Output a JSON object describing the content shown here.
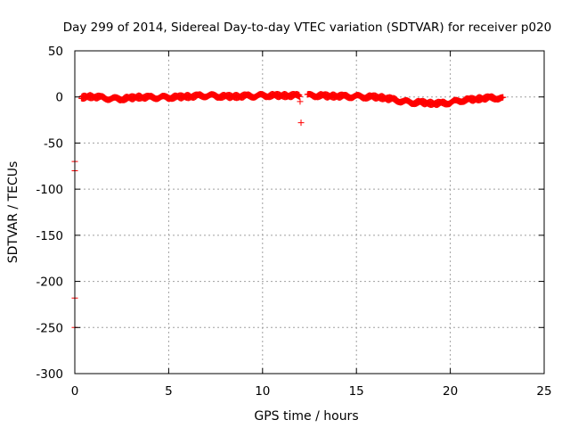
{
  "chart_data": {
    "type": "scatter",
    "title": "Day 299 of 2014, Sidereal Day-to-day VTEC variation (SDTVAR) for receiver p020",
    "xlabel": "GPS time / hours",
    "ylabel": "SDTVAR / TECUs",
    "xlim": [
      0,
      25
    ],
    "ylim": [
      -300,
      50
    ],
    "xticks": [
      0,
      5,
      10,
      15,
      20,
      25
    ],
    "yticks": [
      50,
      0,
      -50,
      -100,
      -150,
      -200,
      -250,
      -300
    ],
    "grid": true,
    "marker": "+",
    "series": [
      {
        "name": "SDTVAR",
        "color": "#ff0000",
        "trend": [
          [
            0.35,
            -1
          ],
          [
            0.5,
            0
          ],
          [
            1.0,
            0.5
          ],
          [
            1.5,
            -1
          ],
          [
            2.0,
            -2
          ],
          [
            2.5,
            -2
          ],
          [
            3.0,
            -1
          ],
          [
            3.5,
            0
          ],
          [
            4.0,
            -0.5
          ],
          [
            4.5,
            -0.5
          ],
          [
            5.0,
            -0.5
          ],
          [
            5.5,
            0
          ],
          [
            6.0,
            0.5
          ],
          [
            6.5,
            1
          ],
          [
            7.0,
            1.5
          ],
          [
            7.5,
            1
          ],
          [
            8.0,
            0.5
          ],
          [
            8.5,
            0.5
          ],
          [
            9.0,
            1
          ],
          [
            9.5,
            1
          ],
          [
            10.0,
            1.5
          ],
          [
            10.5,
            1.5
          ],
          [
            11.0,
            1.5
          ],
          [
            11.5,
            1.5
          ],
          [
            12.0,
            1.5
          ],
          [
            12.3,
            1.5
          ],
          [
            13.0,
            1.5
          ],
          [
            13.5,
            1
          ],
          [
            14.0,
            1
          ],
          [
            14.5,
            0.5
          ],
          [
            15.0,
            0.5
          ],
          [
            15.5,
            0
          ],
          [
            16.0,
            0
          ],
          [
            16.5,
            -1
          ],
          [
            17.0,
            -3
          ],
          [
            17.5,
            -5
          ],
          [
            18.0,
            -6
          ],
          [
            18.5,
            -6
          ],
          [
            19.0,
            -7
          ],
          [
            19.5,
            -7
          ],
          [
            20.0,
            -6
          ],
          [
            20.5,
            -4
          ],
          [
            21.0,
            -3
          ],
          [
            21.5,
            -2
          ],
          [
            22.0,
            -1
          ],
          [
            22.5,
            -1
          ],
          [
            22.8,
            -2
          ]
        ],
        "gaps": [
          [
            11.95,
            12.35
          ]
        ],
        "outliers": [
          [
            0,
            -70
          ],
          [
            0,
            -80
          ],
          [
            0,
            -218
          ],
          [
            0,
            -250
          ],
          [
            12.0,
            -5
          ],
          [
            12.05,
            -28
          ]
        ]
      }
    ]
  }
}
